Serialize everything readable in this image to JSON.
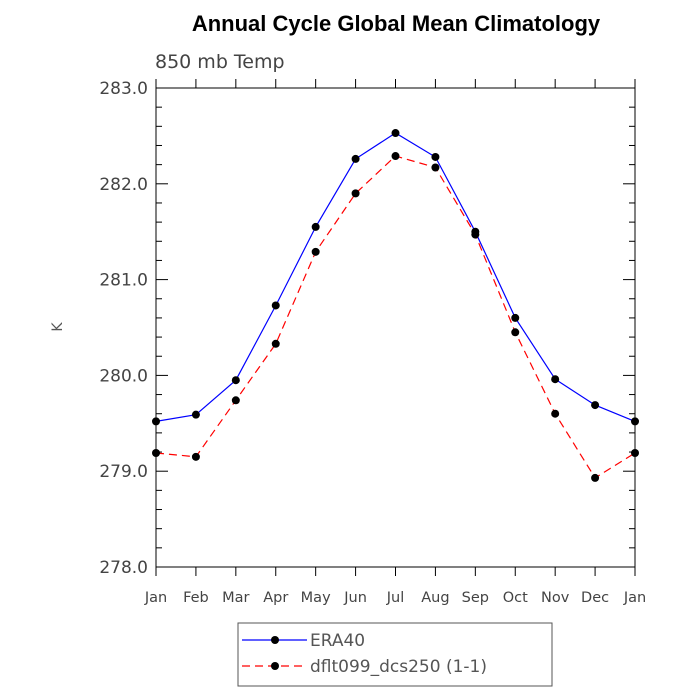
{
  "chart_data": {
    "type": "line",
    "title": "Annual Cycle Global Mean Climatology",
    "subtitle": "850 mb Temp",
    "xlabel": "",
    "ylabel": "K",
    "categories": [
      "Jan",
      "Feb",
      "Mar",
      "Apr",
      "May",
      "Jun",
      "Jul",
      "Aug",
      "Sep",
      "Oct",
      "Nov",
      "Dec",
      "Jan"
    ],
    "ylim": [
      278.0,
      283.0
    ],
    "yticks": [
      "278.0",
      "279.0",
      "280.0",
      "281.0",
      "282.0",
      "283.0"
    ],
    "grid": false,
    "legend": "bottom",
    "series": [
      {
        "name": "ERA40",
        "color": "#0000ff",
        "dash": "solid",
        "marker": "circle",
        "values": [
          279.52,
          279.59,
          279.95,
          280.73,
          281.55,
          282.26,
          282.53,
          282.28,
          281.5,
          280.6,
          279.96,
          279.69,
          279.52
        ]
      },
      {
        "name": "dflt099_dcs250 (1-1)",
        "color": "#ff0000",
        "dash": "dashed",
        "marker": "circle",
        "values": [
          279.19,
          279.15,
          279.74,
          280.33,
          281.29,
          281.9,
          282.29,
          282.17,
          281.47,
          280.45,
          279.6,
          278.93,
          279.19
        ]
      }
    ]
  }
}
